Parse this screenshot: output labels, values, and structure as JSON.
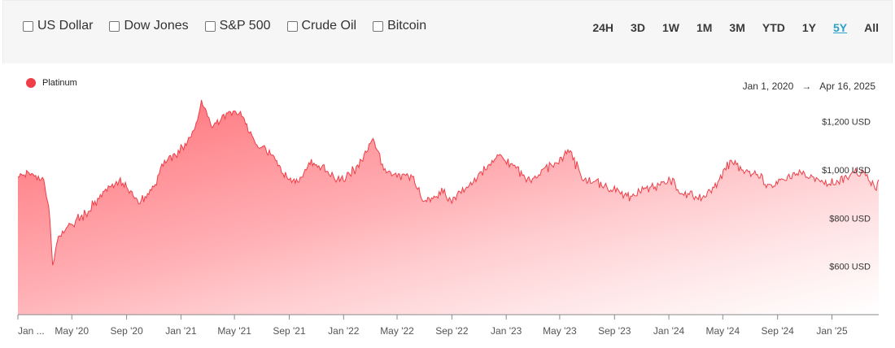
{
  "compare": {
    "items": [
      {
        "label": "US Dollar",
        "checked": false
      },
      {
        "label": "Dow Jones",
        "checked": false
      },
      {
        "label": "S&P 500",
        "checked": false
      },
      {
        "label": "Crude Oil",
        "checked": false
      },
      {
        "label": "Bitcoin",
        "checked": false
      }
    ]
  },
  "ranges": {
    "items": [
      "24H",
      "3D",
      "1W",
      "1M",
      "3M",
      "YTD",
      "1Y",
      "5Y",
      "All"
    ],
    "active": "5Y"
  },
  "legend": {
    "label": "Platinum",
    "color": "#ef3e47"
  },
  "date_range": {
    "start": "Jan 1, 2020",
    "arrow": "→",
    "end": "Apr 16, 2025"
  },
  "chart_data": {
    "type": "area",
    "series": [
      {
        "name": "Platinum",
        "color": "#ef3e47",
        "x": [
          "2020-01-01",
          "2020-02-01",
          "2020-02-28",
          "2020-03-10",
          "2020-03-19",
          "2020-04-01",
          "2020-05-01",
          "2020-06-01",
          "2020-07-01",
          "2020-07-25",
          "2020-08-15",
          "2020-09-01",
          "2020-10-01",
          "2020-11-01",
          "2020-11-25",
          "2020-12-20",
          "2021-01-10",
          "2021-02-01",
          "2021-02-16",
          "2021-03-10",
          "2021-04-01",
          "2021-05-01",
          "2021-05-20",
          "2021-06-15",
          "2021-07-10",
          "2021-08-01",
          "2021-09-01",
          "2021-09-20",
          "2021-10-15",
          "2021-11-15",
          "2021-12-15",
          "2022-01-15",
          "2022-02-10",
          "2022-03-08",
          "2022-04-01",
          "2022-05-01",
          "2022-06-01",
          "2022-07-01",
          "2022-07-20",
          "2022-08-15",
          "2022-09-01",
          "2022-10-01",
          "2022-11-15",
          "2022-12-15",
          "2023-01-20",
          "2023-02-15",
          "2023-03-15",
          "2023-04-20",
          "2023-05-25",
          "2023-06-20",
          "2023-07-15",
          "2023-08-15",
          "2023-09-15",
          "2023-10-10",
          "2023-11-05",
          "2023-12-01",
          "2024-01-01",
          "2024-02-01",
          "2024-03-01",
          "2024-03-25",
          "2024-04-20",
          "2024-05-20",
          "2024-06-15",
          "2024-07-15",
          "2024-08-15",
          "2024-09-15",
          "2024-10-20",
          "2024-11-15",
          "2024-12-15",
          "2025-01-15",
          "2025-02-15",
          "2025-03-15",
          "2025-04-08",
          "2025-04-16"
        ],
        "values": [
          970,
          985,
          960,
          850,
          605,
          725,
          775,
          820,
          880,
          930,
          955,
          930,
          860,
          930,
          1040,
          1060,
          1110,
          1170,
          1290,
          1180,
          1210,
          1245,
          1220,
          1120,
          1090,
          1040,
          960,
          950,
          1030,
          1020,
          950,
          980,
          1040,
          1130,
          1000,
          970,
          980,
          870,
          880,
          920,
          860,
          920,
          1000,
          1060,
          1020,
          950,
          980,
          1030,
          1080,
          960,
          950,
          930,
          900,
          890,
          920,
          930,
          970,
          900,
          890,
          890,
          950,
          1040,
          1000,
          980,
          940,
          960,
          1000,
          980,
          940,
          950,
          990,
          990,
          920,
          960
        ]
      }
    ],
    "x_ticks": [
      "Jan ...",
      "May '20",
      "Sep '20",
      "Jan '21",
      "May '21",
      "Sep '21",
      "Jan '22",
      "May '22",
      "Sep '22",
      "Jan '23",
      "May '23",
      "Sep '23",
      "Jan '24",
      "May '24",
      "Sep '24",
      "Jan '25"
    ],
    "x_tick_dates": [
      "2020-01-01",
      "2020-05-01",
      "2020-09-01",
      "2021-01-01",
      "2021-05-01",
      "2021-09-01",
      "2022-01-01",
      "2022-05-01",
      "2022-09-01",
      "2023-01-01",
      "2023-05-01",
      "2023-09-01",
      "2024-01-01",
      "2024-05-01",
      "2024-09-01",
      "2025-01-01"
    ],
    "y_ticks": [
      {
        "value": 600,
        "label": "$600 USD"
      },
      {
        "value": 800,
        "label": "$800 USD"
      },
      {
        "value": 1000,
        "label": "$1,000 USD"
      },
      {
        "value": 1200,
        "label": "$1,200 USD"
      }
    ],
    "ylim": [
      400,
      1300
    ],
    "xlim": [
      "2020-01-01",
      "2025-04-16"
    ],
    "grid": false,
    "legend_position": "top-left"
  }
}
